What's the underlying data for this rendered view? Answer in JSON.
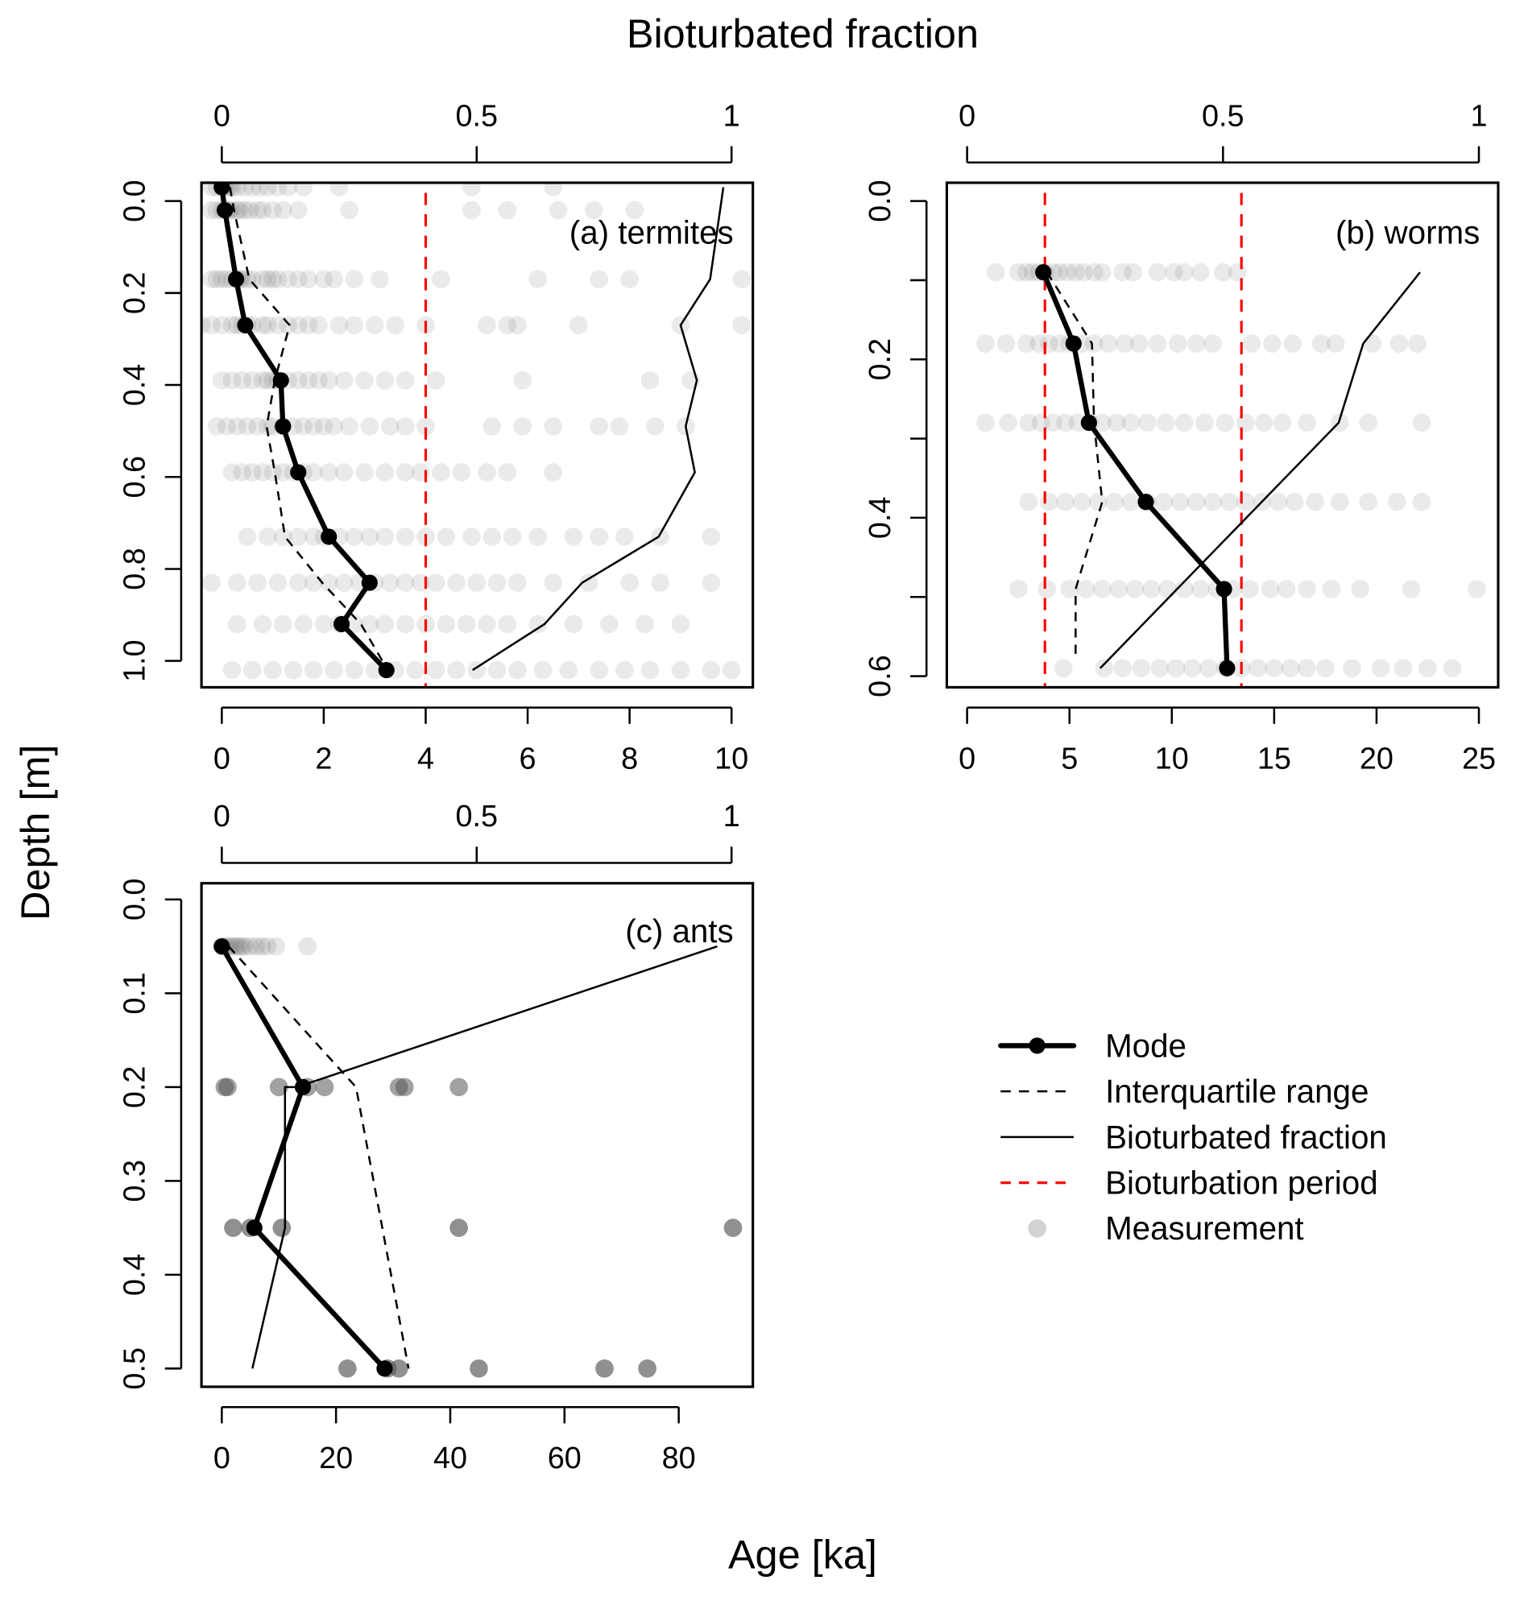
{
  "chart_data": {
    "type": "scatter",
    "title": "",
    "shared_labels": {
      "top_axis_title": "Bioturbated fraction",
      "bottom_axis_title": "Age [ka]",
      "left_axis_title": "Depth [m]"
    },
    "legend": {
      "placement": "bottom-right",
      "entries": [
        {
          "key": "mode",
          "label": "Mode"
        },
        {
          "key": "iqr",
          "label": "Interquartile range"
        },
        {
          "key": "fraction",
          "label": "Bioturbated fraction"
        },
        {
          "key": "period",
          "label": "Bioturbation period"
        },
        {
          "key": "measurement",
          "label": "Measurement"
        }
      ]
    },
    "colors": {
      "mode": "#000000",
      "iqr": "#000000",
      "fraction": "#000000",
      "period": "#ff0000",
      "measurement": "#808080"
    },
    "panels": [
      {
        "id": "a",
        "label": "(a) termites",
        "xlim": [
          0,
          10
        ],
        "x_ticks": [
          0,
          2,
          4,
          6,
          8,
          10
        ],
        "x_tick_labels": [
          "0",
          "2",
          "4",
          "6",
          "8",
          "10"
        ],
        "ylim": [
          1.05,
          -0.04
        ],
        "y_ticks": [
          0.0,
          0.2,
          0.4,
          0.6,
          0.8,
          1.0
        ],
        "y_tick_labels": [
          "0.0",
          "0.2",
          "0.4",
          "0.6",
          "0.8",
          "1.0"
        ],
        "top_ticks": [
          0,
          0.5,
          1
        ],
        "top_tick_labels": [
          "0",
          "0.5",
          "1"
        ],
        "period_ages": [
          4
        ],
        "mode": {
          "depth": [
            -0.03,
            0.02,
            0.17,
            0.27,
            0.39,
            0.49,
            0.59,
            0.73,
            0.83,
            0.92,
            1.02
          ],
          "age": [
            0.0,
            0.06,
            0.28,
            0.46,
            1.16,
            1.2,
            1.5,
            2.1,
            2.9,
            2.35,
            3.23
          ]
        },
        "iqr": {
          "depth": [
            -0.03,
            0.02,
            0.17,
            0.27,
            0.39,
            0.49,
            0.59,
            0.73,
            0.83,
            0.92,
            1.0
          ],
          "age": [
            0.16,
            0.24,
            0.54,
            1.33,
            1.04,
            0.88,
            1.04,
            1.24,
            1.97,
            2.73,
            3.15
          ]
        },
        "fraction": {
          "depth": [
            -0.03,
            0.17,
            0.27,
            0.39,
            0.49,
            0.59,
            0.73,
            0.83,
            0.92,
            1.02
          ],
          "value": [
            0.984,
            0.958,
            0.9,
            0.932,
            0.91,
            0.928,
            0.857,
            0.707,
            0.633,
            0.492
          ]
        },
        "measurements": [
          {
            "depth": -0.03,
            "ages": [
              -0.2,
              -0.1,
              0,
              0.05,
              0.1,
              0.15,
              0.2,
              0.3,
              0.45,
              0.6,
              0.75,
              0.9,
              1.1,
              1.3,
              1.6,
              2.3,
              4.9,
              6.5
            ]
          },
          {
            "depth": 0.02,
            "ages": [
              -0.2,
              -0.1,
              0,
              0.05,
              0.1,
              0.15,
              0.2,
              0.3,
              0.35,
              0.45,
              0.55,
              0.7,
              0.8,
              1.0,
              1.2,
              1.5,
              2.5,
              4.9,
              5.6,
              6.6,
              7.3,
              8.1
            ]
          },
          {
            "depth": 0.17,
            "ages": [
              -0.2,
              -0.1,
              0.0,
              0.1,
              0.2,
              0.3,
              0.35,
              0.4,
              0.5,
              0.6,
              0.8,
              0.9,
              1.0,
              1.1,
              1.3,
              1.5,
              1.7,
              2.0,
              2.2,
              2.6,
              3.1,
              4.3,
              6.2,
              7.4,
              8.0,
              10.2
            ]
          },
          {
            "depth": 0.27,
            "ages": [
              -0.4,
              -0.2,
              0.0,
              0.2,
              0.3,
              0.4,
              0.5,
              0.6,
              0.8,
              0.9,
              1.1,
              1.3,
              1.5,
              1.7,
              1.9,
              2.3,
              2.6,
              3.0,
              3.4,
              4.0,
              5.2,
              5.6,
              5.8,
              7.0,
              9.0,
              10.2
            ]
          },
          {
            "depth": 0.39,
            "ages": [
              0.0,
              0.2,
              0.4,
              0.6,
              0.8,
              0.9,
              1.0,
              1.1,
              1.3,
              1.5,
              1.7,
              1.9,
              2.1,
              2.4,
              2.8,
              3.2,
              3.6,
              4.2,
              5.9,
              8.4,
              9.2
            ]
          },
          {
            "depth": 0.49,
            "ages": [
              -0.1,
              0.1,
              0.3,
              0.5,
              0.7,
              0.9,
              1.0,
              1.2,
              1.4,
              1.6,
              1.8,
              2.0,
              2.2,
              2.5,
              2.9,
              3.3,
              3.6,
              4.0,
              5.3,
              5.9,
              6.5,
              7.4,
              7.8,
              8.5,
              9.1
            ]
          },
          {
            "depth": 0.59,
            "ages": [
              0.2,
              0.4,
              0.6,
              0.8,
              1.0,
              1.2,
              1.4,
              1.6,
              1.8,
              2.1,
              2.4,
              2.8,
              3.2,
              3.6,
              3.9,
              4.3,
              4.7,
              5.2,
              5.6,
              6.5
            ]
          },
          {
            "depth": 0.73,
            "ages": [
              0.5,
              0.9,
              1.2,
              1.5,
              1.8,
              2.0,
              2.3,
              2.6,
              2.9,
              3.2,
              3.6,
              4.0,
              4.4,
              4.9,
              5.3,
              5.7,
              6.2,
              6.9,
              7.4,
              7.9,
              8.6,
              9.6
            ]
          },
          {
            "depth": 0.83,
            "ages": [
              -0.2,
              0.3,
              0.7,
              1.1,
              1.5,
              1.8,
              2.1,
              2.4,
              2.7,
              3.0,
              3.3,
              3.6,
              3.9,
              4.2,
              4.6,
              5.0,
              5.4,
              5.8,
              6.5,
              7.2,
              8.0,
              8.6,
              9.6
            ]
          },
          {
            "depth": 0.92,
            "ages": [
              0.3,
              0.8,
              1.2,
              1.6,
              2.0,
              2.3,
              2.6,
              2.9,
              3.2,
              3.6,
              4.0,
              4.4,
              4.8,
              5.2,
              5.6,
              6.2,
              6.9,
              7.6,
              8.3,
              9.0
            ]
          },
          {
            "depth": 1.02,
            "ages": [
              0.2,
              0.6,
              1.0,
              1.4,
              1.8,
              2.2,
              2.6,
              3.0,
              3.4,
              3.8,
              4.2,
              4.6,
              5.0,
              5.4,
              5.8,
              6.3,
              6.8,
              7.4,
              7.9,
              8.4,
              9.0,
              9.6,
              10.0
            ]
          }
        ]
      },
      {
        "id": "b",
        "label": "(b) worms",
        "xlim": [
          0,
          25
        ],
        "x_ticks": [
          0,
          5,
          10,
          15,
          20,
          25
        ],
        "x_tick_labels": [
          "0",
          "5",
          "10",
          "15",
          "20",
          "25"
        ],
        "ylim": [
          0.61,
          -0.02
        ],
        "y_ticks": [
          0.0,
          0.1,
          0.2,
          0.3,
          0.4,
          0.5,
          0.6
        ],
        "y_tick_labels": [
          "0.0",
          "",
          "0.2",
          "",
          "0.4",
          "",
          "0.6"
        ],
        "top_ticks": [
          0,
          0.5,
          1
        ],
        "top_tick_labels": [
          "0",
          "0.5",
          "1"
        ],
        "period_ages": [
          3.8,
          13.4
        ],
        "mode": {
          "depth": [
            0.09,
            0.18,
            0.28,
            0.38,
            0.49,
            0.59
          ],
          "age": [
            3.72,
            5.2,
            5.95,
            8.73,
            12.55,
            12.7
          ]
        },
        "iqr": {
          "depth": [
            0.09,
            0.18,
            0.28,
            0.38,
            0.49,
            0.58
          ],
          "age": [
            3.9,
            6.1,
            6.2,
            6.6,
            5.3,
            5.3
          ]
        },
        "fraction": {
          "depth": [
            0.09,
            0.18,
            0.28,
            0.59
          ],
          "value": [
            0.885,
            0.774,
            0.726,
            0.26
          ]
        },
        "measurements": [
          {
            "depth": 0.09,
            "ages": [
              1.4,
              2.5,
              2.9,
              3.2,
              3.5,
              3.8,
              4.2,
              4.5,
              4.9,
              5.3,
              5.7,
              6.2,
              6.6,
              7.6,
              8.1,
              9.3,
              10.1,
              10.6,
              11.4,
              12.5,
              13.2
            ]
          },
          {
            "depth": 0.18,
            "ages": [
              0.9,
              1.9,
              2.9,
              3.5,
              4.0,
              4.5,
              5.0,
              5.6,
              6.2,
              6.9,
              7.7,
              8.4,
              9.3,
              10.3,
              11.2,
              12.0,
              13.9,
              14.9,
              15.9,
              17.3,
              18.0,
              19.8,
              21.1,
              22.0
            ]
          },
          {
            "depth": 0.28,
            "ages": [
              0.9,
              2.0,
              3.0,
              3.6,
              4.2,
              4.8,
              5.4,
              6.0,
              6.6,
              7.3,
              8.0,
              8.8,
              9.7,
              10.6,
              11.6,
              12.6,
              13.6,
              14.5,
              15.4,
              16.6,
              18.2,
              19.6,
              22.2
            ]
          },
          {
            "depth": 0.38,
            "ages": [
              3.0,
              4.0,
              4.8,
              5.6,
              6.4,
              7.2,
              8.0,
              8.8,
              9.6,
              10.4,
              11.2,
              12.0,
              12.8,
              13.6,
              14.4,
              15.2,
              16.0,
              17.0,
              18.2,
              19.6,
              21.0,
              22.2
            ]
          },
          {
            "depth": 0.49,
            "ages": [
              2.5,
              3.9,
              5.0,
              5.8,
              6.6,
              7.4,
              8.2,
              9.0,
              9.8,
              10.6,
              11.4,
              12.2,
              13.0,
              13.8,
              14.8,
              15.6,
              16.6,
              17.8,
              19.2,
              21.7,
              24.9
            ]
          },
          {
            "depth": 0.59,
            "ages": [
              4.7,
              6.7,
              7.6,
              8.5,
              9.4,
              10.2,
              11.0,
              11.8,
              12.6,
              13.4,
              14.2,
              15.0,
              15.8,
              16.6,
              17.5,
              18.8,
              20.2,
              21.3,
              22.5,
              23.7
            ]
          }
        ]
      },
      {
        "id": "c",
        "label": "(c) ants",
        "xlim": [
          0,
          92
        ],
        "x_ticks": [
          0,
          20,
          40,
          60,
          80
        ],
        "x_tick_labels": [
          "0",
          "20",
          "40",
          "60",
          "80"
        ],
        "ylim": [
          0.52,
          -0.02
        ],
        "y_ticks": [
          0.0,
          0.1,
          0.2,
          0.3,
          0.4,
          0.5
        ],
        "y_tick_labels": [
          "0.0",
          "0.1",
          "0.2",
          "0.3",
          "0.4",
          "0.5"
        ],
        "top_ticks": [
          0,
          0.5,
          1
        ],
        "top_tick_labels": [
          "0",
          "0.5",
          "1"
        ],
        "period_ages": [],
        "mode": {
          "depth": [
            0.05,
            0.2,
            0.35,
            0.5
          ],
          "age": [
            0.0,
            14.2,
            5.7,
            28.5
          ]
        },
        "iqr": {
          "depth": [
            0.05,
            0.19,
            0.2,
            0.5
          ],
          "age": [
            1.2,
            22.0,
            23.5,
            32.7
          ]
        },
        "fraction": {
          "depth": [
            0.05,
            0.2,
            0.2,
            0.35,
            0.5
          ],
          "value": [
            0.972,
            0.147,
            0.124,
            0.124,
            0.06
          ]
        },
        "measurements": [
          {
            "depth": 0.05,
            "ages": [
              0.0,
              0.5,
              1.0,
              1.5,
              2.0,
              2.5,
              3.0,
              3.5,
              4.0,
              5.0,
              6.0,
              7.0,
              8.0,
              9.5,
              15.0
            ],
            "alpha": 0.15
          },
          {
            "depth": 0.2,
            "ages": [
              0.5,
              1.0,
              10.0,
              15.0,
              18.0,
              31.0,
              32.0,
              41.5
            ],
            "alpha": 0.55
          },
          {
            "depth": 0.35,
            "ages": [
              2.0,
              5.0,
              10.5,
              41.5,
              89.5
            ],
            "alpha": 0.65
          },
          {
            "depth": 0.5,
            "ages": [
              22.0,
              29.0,
              31.0,
              45.0,
              67.0,
              74.5
            ],
            "alpha": 0.65
          }
        ]
      }
    ]
  }
}
